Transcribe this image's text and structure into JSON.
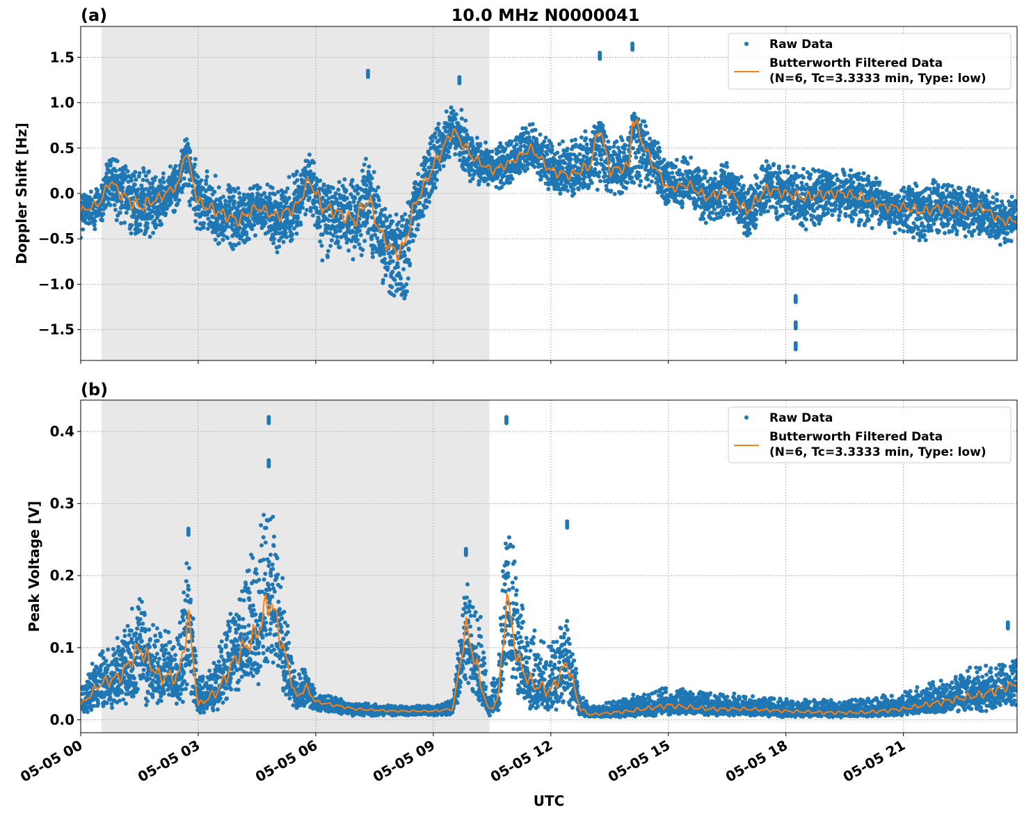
{
  "chart_data": [
    {
      "type": "scatter",
      "panel_label": "(a)",
      "title": "10.0 MHz N0000041",
      "xlabel": "",
      "ylabel": "Doppler Shift [Hz]",
      "xlim": [
        "05-05 00:00",
        "05-05 23:54"
      ],
      "ylim": [
        -1.84,
        1.84
      ],
      "yticks": [
        "1.5",
        "1.0",
        "0.5",
        "0.0",
        "−0.5",
        "−1.0",
        "−1.5"
      ],
      "ytick_values": [
        1.5,
        1.0,
        0.5,
        0.0,
        -0.5,
        -1.0,
        -1.5
      ],
      "grid": true,
      "shaded_interval": [
        "05-05 00:32",
        "05-05 10:26"
      ],
      "legend_placement": "top-right",
      "legend": [
        "Raw Data",
        "Butterworth Filtered Data",
        "(N=6, Tc=3.3333 min, Type: low)"
      ],
      "colors": {
        "raw": "#1f77b4",
        "filtered": "#ff7f0e",
        "shade": "#e8e8e8"
      },
      "series_columns": [
        "time",
        "filtered",
        "raw_min",
        "raw_max"
      ],
      "series": [
        [
          "00:00",
          -0.2,
          -0.5,
          0.05
        ],
        [
          "00:30",
          -0.1,
          -0.45,
          0.1
        ],
        [
          "00:45",
          0.15,
          -0.2,
          0.55
        ],
        [
          "01:00",
          0.0,
          -0.4,
          0.4
        ],
        [
          "01:30",
          -0.15,
          -0.65,
          0.3
        ],
        [
          "02:00",
          -0.05,
          -0.4,
          0.25
        ],
        [
          "02:30",
          0.1,
          -0.2,
          0.35
        ],
        [
          "02:40",
          0.5,
          0.0,
          0.7
        ],
        [
          "03:00",
          -0.1,
          -0.5,
          0.3
        ],
        [
          "03:30",
          -0.2,
          -0.6,
          0.2
        ],
        [
          "04:00",
          -0.3,
          -0.7,
          0.1
        ],
        [
          "04:30",
          -0.15,
          -0.5,
          0.15
        ],
        [
          "05:00",
          -0.25,
          -0.7,
          0.1
        ],
        [
          "05:30",
          -0.15,
          -0.55,
          0.3
        ],
        [
          "05:50",
          0.15,
          -0.2,
          0.5
        ],
        [
          "06:10",
          -0.15,
          -0.8,
          0.2
        ],
        [
          "06:30",
          -0.2,
          -0.65,
          0.15
        ],
        [
          "07:00",
          -0.3,
          -0.8,
          0.3
        ],
        [
          "07:20",
          -0.05,
          -0.7,
          0.5
        ],
        [
          "07:40",
          -0.45,
          -1.0,
          0.0
        ],
        [
          "08:00",
          -0.65,
          -1.3,
          -0.2
        ],
        [
          "08:15",
          -0.6,
          -1.45,
          -0.2
        ],
        [
          "08:30",
          -0.15,
          -0.6,
          0.2
        ],
        [
          "09:00",
          0.3,
          -0.1,
          0.75
        ],
        [
          "09:30",
          0.7,
          0.35,
          1.1
        ],
        [
          "10:00",
          0.4,
          0.1,
          0.7
        ],
        [
          "10:30",
          0.25,
          0.0,
          0.55
        ],
        [
          "11:00",
          0.35,
          0.1,
          0.65
        ],
        [
          "11:30",
          0.5,
          0.25,
          0.8
        ],
        [
          "12:00",
          0.25,
          0.0,
          0.65
        ],
        [
          "12:30",
          0.2,
          -0.05,
          0.6
        ],
        [
          "13:00",
          0.3,
          0.0,
          0.75
        ],
        [
          "13:15",
          0.75,
          0.0,
          0.85
        ],
        [
          "13:30",
          0.25,
          -0.05,
          0.65
        ],
        [
          "14:00",
          0.3,
          0.0,
          0.7
        ],
        [
          "14:05",
          0.85,
          -0.1,
          0.9
        ],
        [
          "14:30",
          0.4,
          0.0,
          0.8
        ],
        [
          "15:00",
          0.05,
          -0.2,
          0.35
        ],
        [
          "15:30",
          0.1,
          -0.15,
          0.45
        ],
        [
          "16:00",
          -0.05,
          -0.4,
          0.25
        ],
        [
          "16:30",
          0.05,
          -0.3,
          0.35
        ],
        [
          "17:00",
          -0.2,
          -0.55,
          0.15
        ],
        [
          "17:30",
          0.05,
          -0.3,
          0.45
        ],
        [
          "18:00",
          0.0,
          -0.35,
          0.3
        ],
        [
          "18:30",
          -0.05,
          -0.4,
          0.35
        ],
        [
          "19:00",
          0.0,
          -0.35,
          0.3
        ],
        [
          "19:30",
          0.0,
          -0.3,
          0.3
        ],
        [
          "20:00",
          -0.05,
          -0.4,
          0.25
        ],
        [
          "20:30",
          -0.15,
          -0.45,
          0.15
        ],
        [
          "21:00",
          -0.15,
          -0.5,
          0.1
        ],
        [
          "21:30",
          -0.2,
          -0.55,
          0.15
        ],
        [
          "22:00",
          -0.15,
          -0.45,
          0.2
        ],
        [
          "22:30",
          -0.2,
          -0.5,
          0.1
        ],
        [
          "23:00",
          -0.15,
          -0.5,
          0.1
        ],
        [
          "23:30",
          -0.3,
          -0.6,
          0.0
        ],
        [
          "23:54",
          -0.3,
          -0.55,
          0.0
        ]
      ],
      "outliers": [
        [
          "18:15",
          -1.65
        ],
        [
          "18:15",
          -1.42
        ],
        [
          "18:15",
          -1.13
        ],
        [
          "13:15",
          1.55
        ],
        [
          "14:05",
          1.65
        ],
        [
          "07:20",
          1.35
        ],
        [
          "09:40",
          1.28
        ]
      ]
    },
    {
      "type": "scatter",
      "panel_label": "(b)",
      "title": "",
      "xlabel": "UTC",
      "ylabel": "Peak Voltage [V]",
      "xlim": [
        "05-05 00:00",
        "05-05 23:54"
      ],
      "ylim": [
        -0.018,
        0.4435
      ],
      "yticks": [
        "0.4",
        "0.3",
        "0.2",
        "0.1",
        "0.0"
      ],
      "ytick_values": [
        0.4,
        0.3,
        0.2,
        0.1,
        0.0
      ],
      "xticks": [
        "05-05 00",
        "05-05 03",
        "05-05 06",
        "05-05 09",
        "05-05 12",
        "05-05 15",
        "05-05 18",
        "05-05 21"
      ],
      "xtick_values": [
        "00:00",
        "03:00",
        "06:00",
        "09:00",
        "12:00",
        "15:00",
        "18:00",
        "21:00"
      ],
      "grid": true,
      "shaded_interval": [
        "05-05 00:32",
        "05-05 10:26"
      ],
      "legend_placement": "top-right",
      "legend": [
        "Raw Data",
        "Butterworth Filtered Data",
        "(N=6, Tc=3.3333 min, Type: low)"
      ],
      "colors": {
        "raw": "#1f77b4",
        "filtered": "#ff7f0e",
        "shade": "#e8e8e8"
      },
      "series_columns": [
        "time",
        "filtered",
        "raw_min",
        "raw_max"
      ],
      "series": [
        [
          "00:00",
          0.02,
          0.005,
          0.05
        ],
        [
          "00:30",
          0.05,
          0.01,
          0.1
        ],
        [
          "01:00",
          0.06,
          0.015,
          0.12
        ],
        [
          "01:30",
          0.1,
          0.02,
          0.2
        ],
        [
          "02:00",
          0.06,
          0.015,
          0.15
        ],
        [
          "02:30",
          0.06,
          0.015,
          0.13
        ],
        [
          "02:45",
          0.14,
          0.02,
          0.25
        ],
        [
          "03:00",
          0.02,
          0.005,
          0.06
        ],
        [
          "03:30",
          0.04,
          0.01,
          0.1
        ],
        [
          "04:00",
          0.09,
          0.03,
          0.2
        ],
        [
          "04:30",
          0.12,
          0.04,
          0.25
        ],
        [
          "04:50",
          0.17,
          0.06,
          0.35
        ],
        [
          "05:10",
          0.1,
          0.03,
          0.2
        ],
        [
          "05:30",
          0.03,
          0.01,
          0.06
        ],
        [
          "05:45",
          0.045,
          0.015,
          0.08
        ],
        [
          "06:00",
          0.025,
          0.01,
          0.04
        ],
        [
          "07:00",
          0.015,
          0.005,
          0.025
        ],
        [
          "08:00",
          0.012,
          0.005,
          0.02
        ],
        [
          "09:00",
          0.012,
          0.005,
          0.02
        ],
        [
          "09:30",
          0.015,
          0.005,
          0.03
        ],
        [
          "09:50",
          0.13,
          0.04,
          0.2
        ],
        [
          "10:10",
          0.06,
          0.02,
          0.18
        ],
        [
          "10:25",
          0.012,
          0.005,
          0.03
        ],
        [
          "10:40",
          0.03,
          0.01,
          0.1
        ],
        [
          "10:52",
          0.17,
          0.05,
          0.32
        ],
        [
          "11:10",
          0.08,
          0.02,
          0.2
        ],
        [
          "11:30",
          0.05,
          0.01,
          0.14
        ],
        [
          "12:00",
          0.04,
          0.01,
          0.12
        ],
        [
          "12:25",
          0.08,
          0.01,
          0.15
        ],
        [
          "12:45",
          0.015,
          0.005,
          0.04
        ],
        [
          "13:00",
          0.007,
          0.003,
          0.02
        ],
        [
          "14:00",
          0.012,
          0.003,
          0.035
        ],
        [
          "15:00",
          0.02,
          0.005,
          0.05
        ],
        [
          "16:00",
          0.015,
          0.005,
          0.04
        ],
        [
          "17:00",
          0.015,
          0.005,
          0.035
        ],
        [
          "18:00",
          0.012,
          0.003,
          0.03
        ],
        [
          "19:00",
          0.01,
          0.003,
          0.03
        ],
        [
          "20:00",
          0.01,
          0.003,
          0.03
        ],
        [
          "21:00",
          0.015,
          0.005,
          0.04
        ],
        [
          "22:00",
          0.025,
          0.008,
          0.06
        ],
        [
          "23:00",
          0.035,
          0.01,
          0.08
        ],
        [
          "23:54",
          0.05,
          0.015,
          0.09
        ]
      ],
      "outliers": [
        [
          "04:48",
          0.42
        ],
        [
          "10:52",
          0.42
        ],
        [
          "12:25",
          0.275
        ],
        [
          "02:45",
          0.265
        ],
        [
          "09:50",
          0.237
        ],
        [
          "23:40",
          0.135
        ],
        [
          "04:48",
          0.36
        ]
      ]
    }
  ]
}
